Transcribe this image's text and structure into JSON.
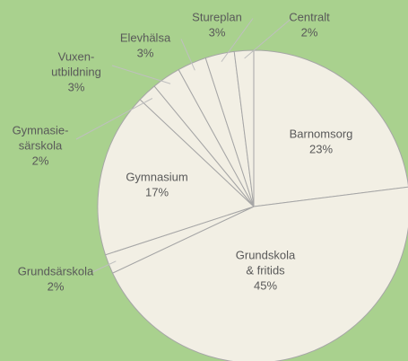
{
  "chart_data": {
    "type": "pie",
    "categories": [
      [
        "Barnomsorg"
      ],
      [
        "Grundskola",
        "& fritids"
      ],
      [
        "Grundsärskola"
      ],
      [
        "Gymnasium"
      ],
      [
        "Gymnasie-",
        "särskola"
      ],
      [
        "Vuxen-",
        "utbildning"
      ],
      [
        "Elevhälsa"
      ],
      [
        "Stureplan"
      ],
      [
        "Centralt"
      ]
    ],
    "values": [
      23,
      45,
      2,
      17,
      2,
      3,
      3,
      3,
      2
    ],
    "value_labels": [
      "23%",
      "45%",
      "2%",
      "17%",
      "2%",
      "3%",
      "3%",
      "3%",
      "2%"
    ],
    "color": "#f2efe4"
  }
}
